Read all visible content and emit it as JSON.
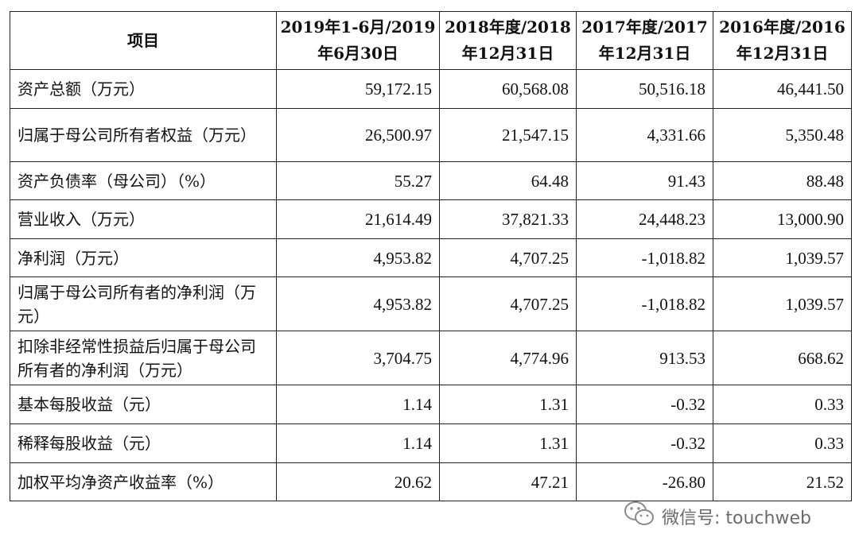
{
  "table": {
    "headers": [
      "项目",
      [
        "2019年1-6月/2019",
        "年6月30日"
      ],
      [
        "2018年度/2018",
        "年12月31日"
      ],
      [
        "2017年度/2017",
        "年12月31日"
      ],
      [
        "2016年度/2016",
        "年12月31日"
      ]
    ],
    "rows": [
      {
        "label": "资产总额（万元）",
        "values": [
          "59,172.15",
          "60,568.08",
          "50,516.18",
          "46,441.50"
        ]
      },
      {
        "label": "归属于母公司所有者权益（万元）",
        "values": [
          "26,500.97",
          "21,547.15",
          "4,331.66",
          "5,350.48"
        ]
      },
      {
        "label": "资产负债率（母公司）（%）",
        "values": [
          "55.27",
          "64.48",
          "91.43",
          "88.48"
        ]
      },
      {
        "label": "营业收入（万元）",
        "values": [
          "21,614.49",
          "37,821.33",
          "24,448.23",
          "13,000.90"
        ]
      },
      {
        "label": "净利润（万元）",
        "values": [
          "4,953.82",
          "4,707.25",
          "-1,018.82",
          "1,039.57"
        ]
      },
      {
        "label": "归属于母公司所有者的净利润（万元）",
        "values": [
          "4,953.82",
          "4,707.25",
          "-1,018.82",
          "1,039.57"
        ]
      },
      {
        "label": "扣除非经常性损益后归属于母公司所有者的净利润（万元）",
        "values": [
          "3,704.75",
          "4,774.96",
          "913.53",
          "668.62"
        ]
      },
      {
        "label": "基本每股收益（元）",
        "values": [
          "1.14",
          "1.31",
          "-0.32",
          "0.33"
        ]
      },
      {
        "label": "稀释每股收益（元）",
        "values": [
          "1.14",
          "1.31",
          "-0.32",
          "0.33"
        ]
      },
      {
        "label": "加权平均净资产收益率（%）",
        "values": [
          "20.62",
          "47.21",
          "-26.80",
          "21.52"
        ]
      }
    ]
  },
  "watermark": {
    "text": "微信号: touchweb",
    "icon": "wechat-icon"
  }
}
